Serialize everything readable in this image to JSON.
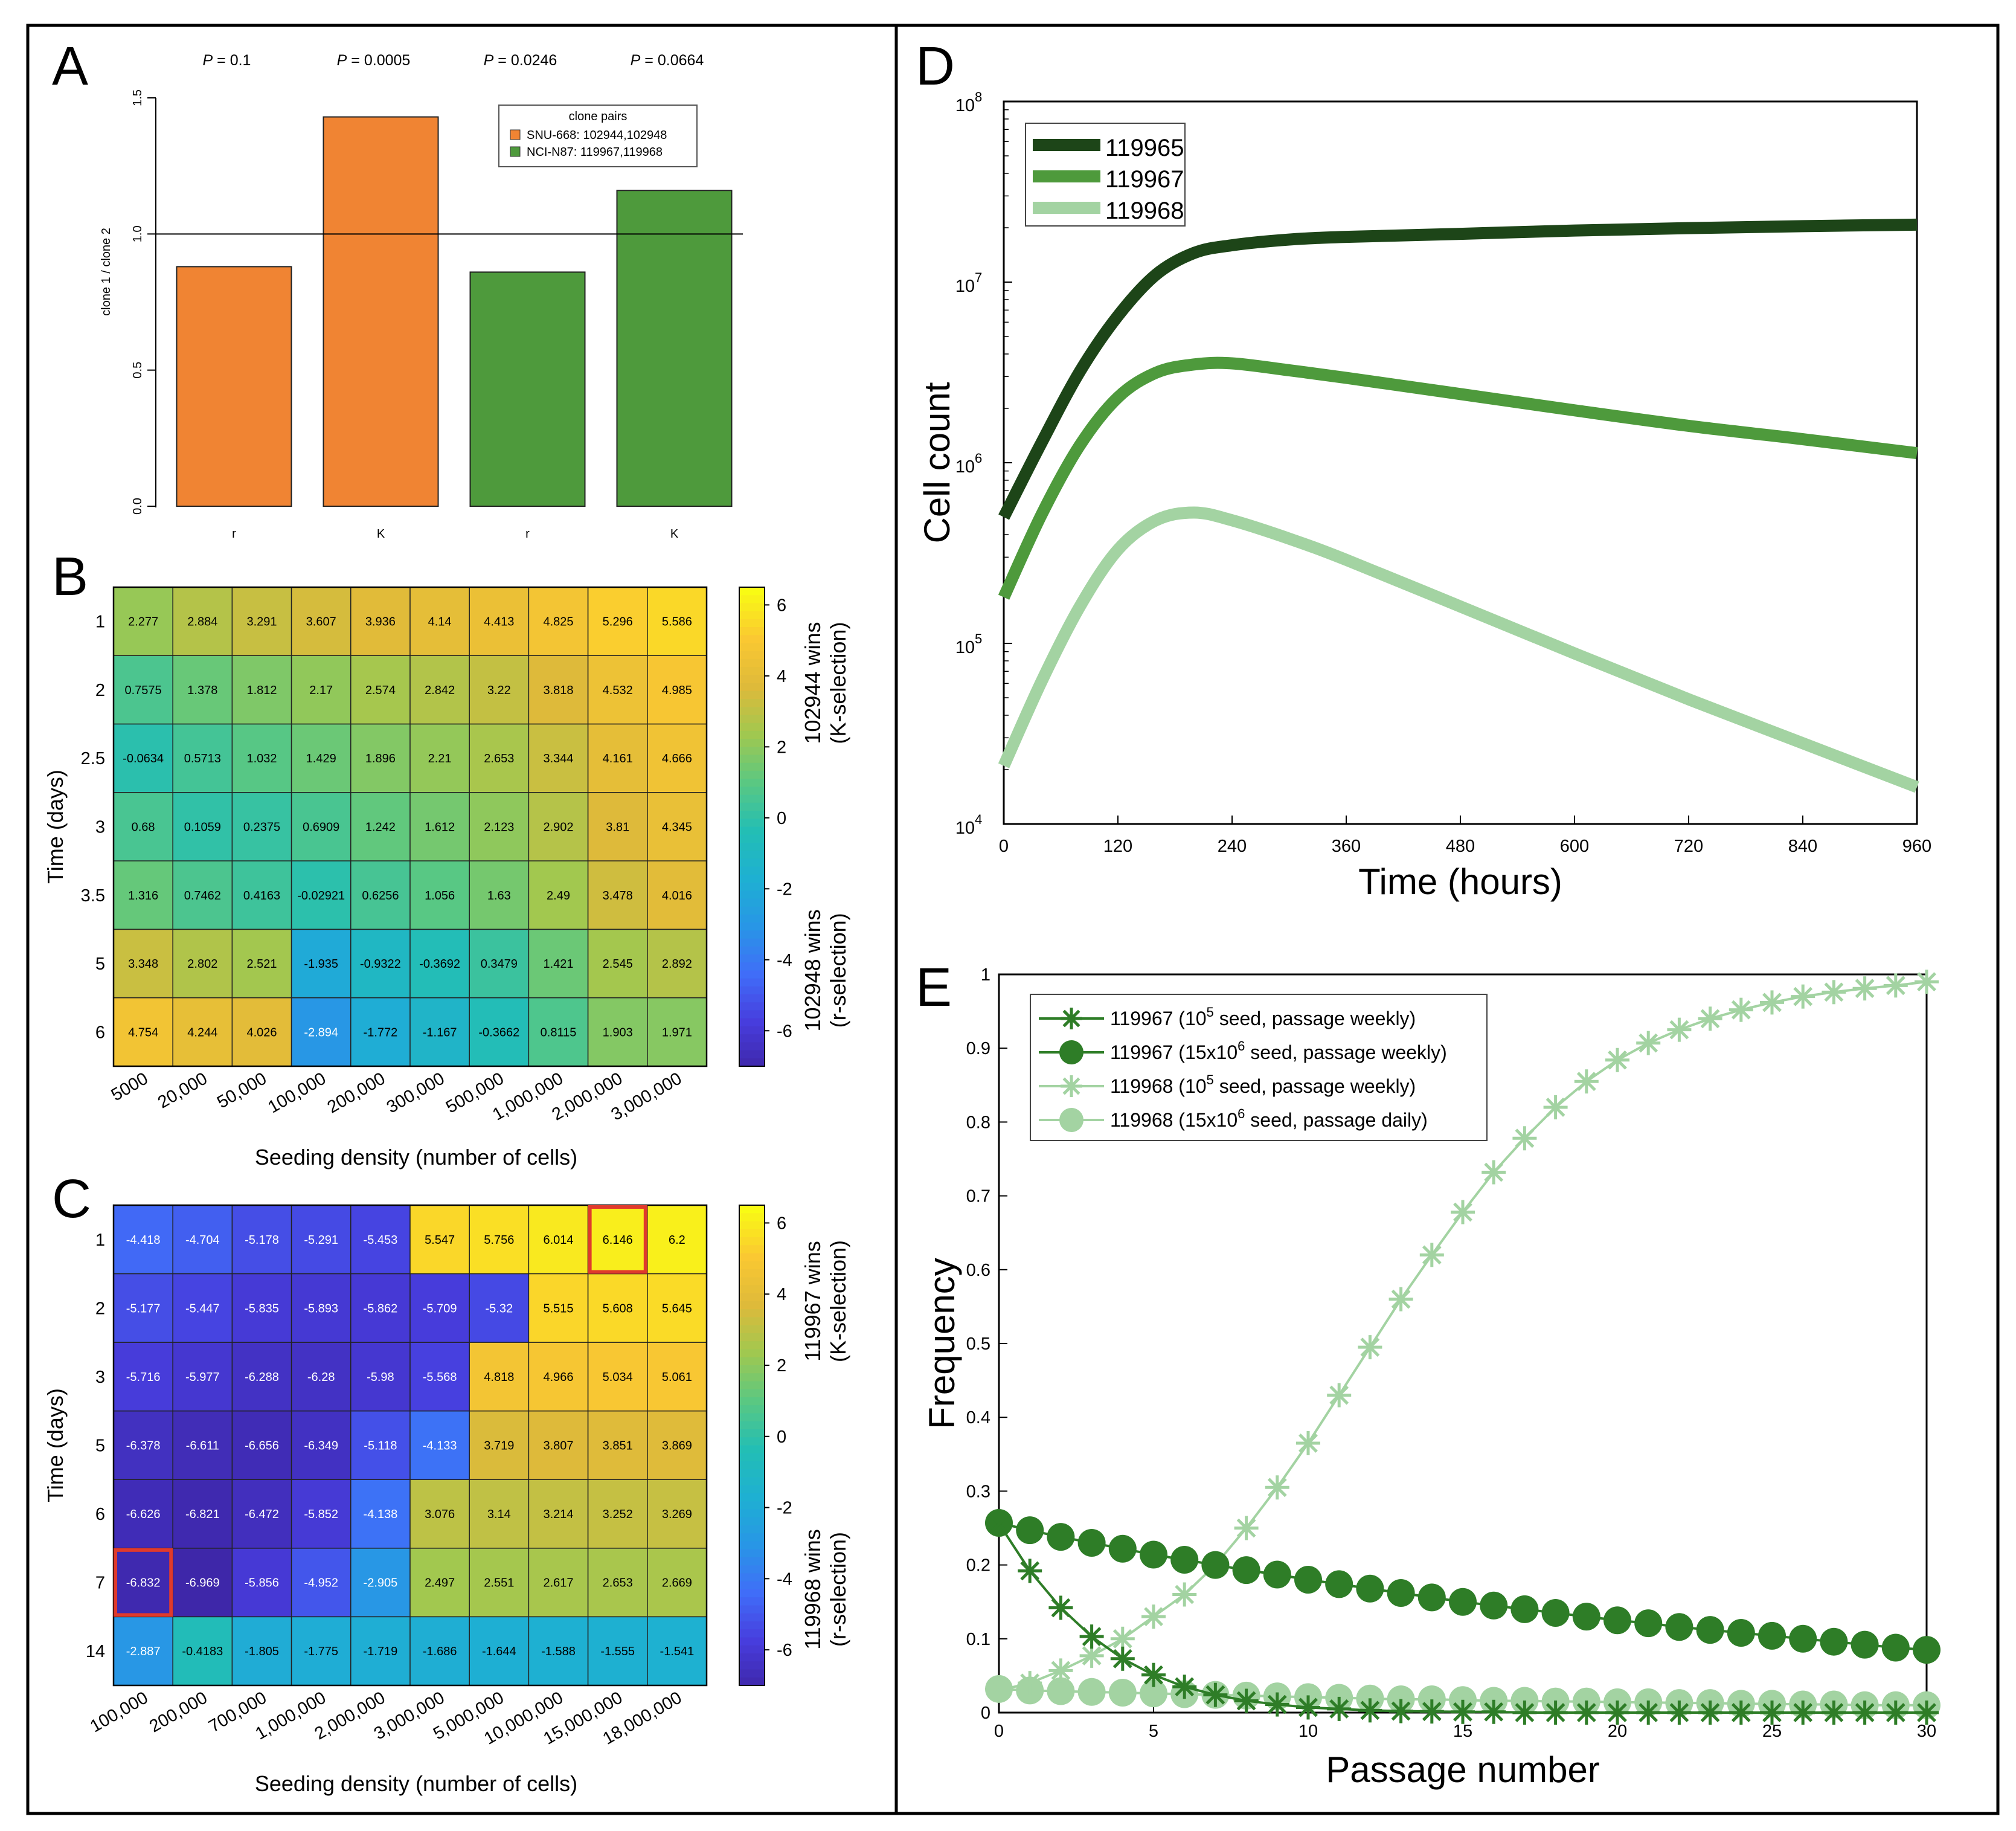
{
  "panels": {
    "A": "A",
    "B": "B",
    "C": "C",
    "D": "D",
    "E": "E"
  },
  "chart_data": [
    {
      "id": "A",
      "type": "bar",
      "categories": [
        "r",
        "K",
        "r",
        "K"
      ],
      "values": [
        0.88,
        1.43,
        0.86,
        1.16
      ],
      "bar_colors": [
        "#f08433",
        "#f08433",
        "#4e9a3c",
        "#4e9a3c"
      ],
      "ylabel": "clone 1 / clone 2",
      "ylim": [
        0,
        1.5
      ],
      "yticks": [
        "0.0",
        "0.5",
        "1.0",
        "1.5"
      ],
      "reference_line": 1.0,
      "p_values": [
        "0.1",
        "0.0005",
        "0.0246",
        "0.0664"
      ],
      "p_label": "P",
      "legend": {
        "title": "clone pairs",
        "entries": [
          {
            "label": "SNU-668: 102944,102948",
            "color": "#f08433"
          },
          {
            "label": "NCI-N87: 119967,119968",
            "color": "#4e9a3c"
          }
        ]
      }
    },
    {
      "id": "B",
      "type": "heatmap",
      "rows": [
        "1",
        "2",
        "2.5",
        "3",
        "3.5",
        "5",
        "6"
      ],
      "cols": [
        "5000",
        "20,000",
        "50,000",
        "100,000",
        "200,000",
        "300,000",
        "500,000",
        "1,000,000",
        "2,000,000",
        "3,000,000"
      ],
      "values": [
        [
          "2.277",
          "2.884",
          "3.291",
          "3.607",
          "3.936",
          "4.14",
          "4.413",
          "4.825",
          "5.296",
          "5.586"
        ],
        [
          "0.7575",
          "1.378",
          "1.812",
          "2.17",
          "2.574",
          "2.842",
          "3.22",
          "3.818",
          "4.532",
          "4.985"
        ],
        [
          "-0.0634",
          "0.5713",
          "1.032",
          "1.429",
          "1.896",
          "2.21",
          "2.653",
          "3.344",
          "4.161",
          "4.666"
        ],
        [
          "0.68",
          "0.1059",
          "0.2375",
          "0.6909",
          "1.242",
          "1.612",
          "2.123",
          "2.902",
          "3.81",
          "4.345"
        ],
        [
          "1.316",
          "0.7462",
          "0.4163",
          "-0.02921",
          "0.6256",
          "1.056",
          "1.63",
          "2.49",
          "3.478",
          "4.016"
        ],
        [
          "3.348",
          "2.802",
          "2.521",
          "-1.935",
          "-0.9322",
          "-0.3692",
          "0.3479",
          "1.421",
          "2.545",
          "2.892"
        ],
        [
          "4.754",
          "4.244",
          "4.026",
          "-2.894",
          "-1.772",
          "-1.167",
          "-0.3662",
          "0.8115",
          "1.903",
          "1.971"
        ]
      ],
      "xlabel": "Seeding density (number of cells)",
      "ylabel": "Time (days)",
      "colorbar": {
        "ticks": [
          "6",
          "4",
          "2",
          "0",
          "-2",
          "-4",
          "-6"
        ],
        "top_label_1": "102944 wins",
        "top_label_2": "(K-selection)",
        "bottom_label_1": "102948 wins",
        "bottom_label_2": "(r-selection)",
        "range": [
          -7,
          6.5
        ]
      },
      "highlight": []
    },
    {
      "id": "C",
      "type": "heatmap",
      "rows": [
        "1",
        "2",
        "3",
        "5",
        "6",
        "7",
        "14"
      ],
      "cols": [
        "100,000",
        "200,000",
        "700,000",
        "1,000,000",
        "2,000,000",
        "3,000,000",
        "5,000,000",
        "10,000,000",
        "15,000,000",
        "18,000,000"
      ],
      "values": [
        [
          "-4.418",
          "-4.704",
          "-5.178",
          "-5.291",
          "-5.453",
          "5.547",
          "5.756",
          "6.014",
          "6.146",
          "6.2"
        ],
        [
          "-5.177",
          "-5.447",
          "-5.835",
          "-5.893",
          "-5.862",
          "-5.709",
          "-5.32",
          "5.515",
          "5.608",
          "5.645"
        ],
        [
          "-5.716",
          "-5.977",
          "-6.288",
          "-6.28",
          "-5.98",
          "-5.568",
          "4.818",
          "4.966",
          "5.034",
          "5.061"
        ],
        [
          "-6.378",
          "-6.611",
          "-6.656",
          "-6.349",
          "-5.118",
          "-4.133",
          "3.719",
          "3.807",
          "3.851",
          "3.869"
        ],
        [
          "-6.626",
          "-6.821",
          "-6.472",
          "-5.852",
          "-4.138",
          "3.076",
          "3.14",
          "3.214",
          "3.252",
          "3.269"
        ],
        [
          "-6.832",
          "-6.969",
          "-5.856",
          "-4.952",
          "-2.905",
          "2.497",
          "2.551",
          "2.617",
          "2.653",
          "2.669"
        ],
        [
          "-2.887",
          "-0.4183",
          "-1.805",
          "-1.775",
          "-1.719",
          "-1.686",
          "-1.644",
          "-1.588",
          "-1.555",
          "-1.541"
        ]
      ],
      "xlabel": "Seeding density (number of cells)",
      "ylabel": "Time (days)",
      "colorbar": {
        "ticks": [
          "6",
          "4",
          "2",
          "0",
          "-2",
          "-4",
          "-6"
        ],
        "top_label_1": "119967 wins",
        "top_label_2": "(K-selection)",
        "bottom_label_1": "119968 wins",
        "bottom_label_2": "(r-selection)",
        "range": [
          -7,
          6.5
        ]
      },
      "highlight": [
        [
          0,
          8
        ],
        [
          5,
          0
        ]
      ]
    },
    {
      "id": "D",
      "type": "line",
      "title": "",
      "xlabel": "Time (hours)",
      "ylabel": "Cell count",
      "xlim": [
        0,
        960
      ],
      "xticks": [
        "0",
        "120",
        "240",
        "360",
        "480",
        "600",
        "720",
        "840",
        "960"
      ],
      "yscale": "log",
      "ylim_exp": [
        4,
        8
      ],
      "ytick_base": "10",
      "ytick_exps": [
        "4",
        "5",
        "6",
        "7",
        "8"
      ],
      "series": [
        {
          "name": "119965",
          "color": "#1d4518",
          "x": [
            0,
            40,
            80,
            120,
            160,
            200,
            240,
            300,
            360,
            480,
            600,
            720,
            840,
            960
          ],
          "y": [
            500000,
            1300000,
            3200000,
            6500000,
            11000000,
            14500000,
            16000000,
            17200000,
            17800000,
            18500000,
            19300000,
            19900000,
            20400000,
            20800000
          ]
        },
        {
          "name": "119967",
          "color": "#4e9a3c",
          "x": [
            0,
            40,
            80,
            120,
            160,
            200,
            240,
            300,
            360,
            480,
            600,
            720,
            840,
            960
          ],
          "y": [
            180000,
            520000,
            1250000,
            2300000,
            3150000,
            3500000,
            3550000,
            3250000,
            2950000,
            2400000,
            1950000,
            1600000,
            1350000,
            1130000
          ]
        },
        {
          "name": "119968",
          "color": "#a3d3a2",
          "x": [
            0,
            40,
            80,
            120,
            160,
            200,
            240,
            300,
            360,
            480,
            600,
            720,
            840,
            960
          ],
          "y": [
            21000,
            62000,
            160000,
            330000,
            480000,
            530000,
            480000,
            380000,
            290000,
            160000,
            88000,
            49000,
            28000,
            16000
          ]
        }
      ]
    },
    {
      "id": "E",
      "type": "line",
      "xlabel": "Passage number",
      "ylabel": "Frequency",
      "xlim": [
        0,
        30
      ],
      "ylim": [
        0,
        1
      ],
      "xticks": [
        "0",
        "5",
        "10",
        "15",
        "20",
        "25",
        "30"
      ],
      "yticks": [
        "0",
        "0.1",
        "0.2",
        "0.3",
        "0.4",
        "0.5",
        "0.6",
        "0.7",
        "0.8",
        "0.9",
        "1"
      ],
      "legend": [
        {
          "pre": "119967 (10",
          "sup": "5",
          "post": " seed, passage weekly)"
        },
        {
          "pre": "119967 (15x10",
          "sup": "6",
          "post": " seed, passage weekly)"
        },
        {
          "pre": "119968 (10",
          "sup": "5",
          "post": " seed, passage weekly)"
        },
        {
          "pre": "119968 (15x10",
          "sup": "6",
          "post": " seed, passage daily)"
        }
      ],
      "series": [
        {
          "name": "119967 (10^5 seed, passage weekly)",
          "color": "#2e7d27",
          "marker": "asterisk",
          "x": [
            0,
            1,
            2,
            3,
            4,
            5,
            6,
            7,
            8,
            9,
            10,
            11,
            12,
            13,
            14,
            15,
            16,
            17,
            18,
            19,
            20,
            21,
            22,
            23,
            24,
            25,
            26,
            27,
            28,
            29,
            30
          ],
          "y": [
            0.256,
            0.192,
            0.142,
            0.103,
            0.073,
            0.051,
            0.035,
            0.024,
            0.016,
            0.011,
            0.007,
            0.005,
            0.003,
            0.002,
            0.0015,
            0.001,
            0.001,
            0,
            0,
            0,
            0,
            0,
            0,
            0,
            0,
            0,
            0,
            0,
            0,
            0,
            0
          ]
        },
        {
          "name": "119967 (15x10^6 seed, passage weekly)",
          "color": "#2e7d27",
          "marker": "circle",
          "x": [
            0,
            1,
            2,
            3,
            4,
            5,
            6,
            7,
            8,
            9,
            10,
            11,
            12,
            13,
            14,
            15,
            16,
            17,
            18,
            19,
            20,
            21,
            22,
            23,
            24,
            25,
            26,
            27,
            28,
            29,
            30
          ],
          "y": [
            0.257,
            0.247,
            0.238,
            0.23,
            0.222,
            0.214,
            0.207,
            0.2,
            0.193,
            0.187,
            0.18,
            0.174,
            0.168,
            0.162,
            0.156,
            0.15,
            0.145,
            0.14,
            0.135,
            0.13,
            0.125,
            0.121,
            0.116,
            0.112,
            0.108,
            0.104,
            0.1,
            0.096,
            0.092,
            0.088,
            0.085
          ]
        },
        {
          "name": "119968 (10^5 seed, passage weekly)",
          "color": "#a3d3a2",
          "marker": "asterisk",
          "x": [
            0,
            1,
            2,
            3,
            4,
            5,
            6,
            7,
            8,
            9,
            10,
            11,
            12,
            13,
            14,
            15,
            16,
            17,
            18,
            19,
            20,
            21,
            22,
            23,
            24,
            25,
            26,
            27,
            28,
            29,
            30
          ],
          "y": [
            0.03,
            0.04,
            0.057,
            0.077,
            0.1,
            0.13,
            0.16,
            0.2,
            0.25,
            0.305,
            0.365,
            0.43,
            0.495,
            0.56,
            0.62,
            0.678,
            0.732,
            0.778,
            0.82,
            0.855,
            0.884,
            0.907,
            0.925,
            0.94,
            0.952,
            0.962,
            0.97,
            0.976,
            0.981,
            0.985,
            0.99
          ]
        },
        {
          "name": "119968 (15x10^6 seed, passage daily)",
          "color": "#a3d3a2",
          "marker": "circle",
          "x": [
            0,
            1,
            2,
            3,
            4,
            5,
            6,
            7,
            8,
            9,
            10,
            11,
            12,
            13,
            14,
            15,
            16,
            17,
            18,
            19,
            20,
            21,
            22,
            23,
            24,
            25,
            26,
            27,
            28,
            29,
            30
          ],
          "y": [
            0.032,
            0.03,
            0.029,
            0.028,
            0.027,
            0.026,
            0.025,
            0.024,
            0.023,
            0.022,
            0.021,
            0.02,
            0.019,
            0.018,
            0.018,
            0.017,
            0.016,
            0.016,
            0.015,
            0.015,
            0.014,
            0.014,
            0.013,
            0.013,
            0.012,
            0.012,
            0.011,
            0.011,
            0.01,
            0.01,
            0.01
          ]
        }
      ]
    }
  ]
}
